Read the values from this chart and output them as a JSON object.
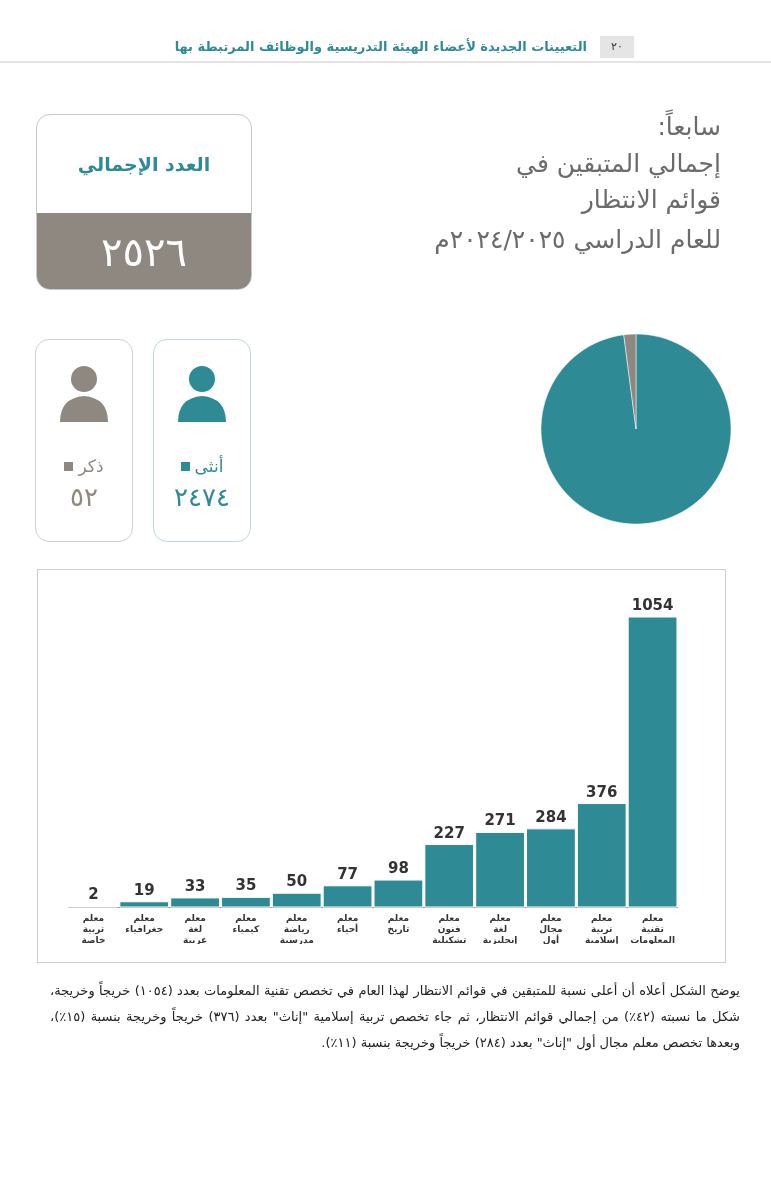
{
  "chart_data": [
    {
      "type": "pie",
      "title": "إجمالي المتبقين في قوائم الانتظار",
      "subtitle": "للعام الدراسي ٢٠٢٤/٢٠٢٥م",
      "legend": "left",
      "annotations": [
        "٢٠",
        "التعيينات الجديدة لأعضاء الهيئة التدريسية والوظائف المرتبطة بها",
        "سابعاً:",
        "العدد الإجمالي",
        "٢٥٢٦"
      ],
      "categories": [
        "أنثى",
        "ذكر"
      ],
      "values": [
        2474,
        52
      ],
      "value_labels": [
        "٢٤٧٤",
        "٥٢"
      ],
      "colors": [
        "#2e8b95",
        "#8f8881"
      ]
    },
    {
      "type": "bar",
      "color": "#2e8b95",
      "data_labels": true,
      "categories": [
        "معلم تربية خاصة",
        "معلم جغرافياء",
        "معلم لغة عربية",
        "معلم كيمياء",
        "معلم رياضة مدرسية",
        "معلم أحياء",
        "معلم تاريخ",
        "معلم فنون تشكيلية",
        "معلم لغة إنجليزية",
        "معلم مجال أول",
        "معلم تربية إسلامية",
        "معلم تقنية المعلومات"
      ],
      "values": [
        2,
        19,
        33,
        35,
        50,
        77,
        98,
        227,
        271,
        284,
        376,
        1054
      ],
      "annotations": [
        "يوضح الشكل أعلاه أن أعلى نسبة للمتبقين في قوائم الانتظار لهذا العام في تخصص تقنية المعلومات بعدد (١٠٥٤) خريجاً وخريجة، شكل ما نسبته (٤٢٪) من إجمالي قوائم الانتظار، ثم جاء تخصص تربية إسلامية \"إناث\" بعدد (٣٧٦) خريجاً وخريجة بنسبة (١٥٪)، وبعدها تخصص معلم مجال أول \"إناث\" بعدد (٢٨٤) خريجاً وخريجة بنسبة (١١٪)."
      ]
    }
  ]
}
